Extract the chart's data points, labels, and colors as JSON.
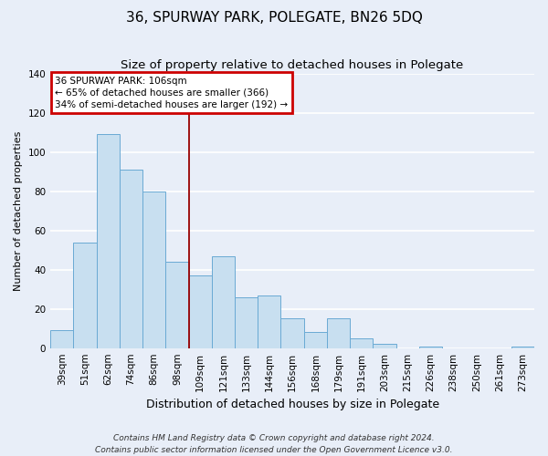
{
  "title": "36, SPURWAY PARK, POLEGATE, BN26 5DQ",
  "subtitle": "Size of property relative to detached houses in Polegate",
  "xlabel": "Distribution of detached houses by size in Polegate",
  "ylabel": "Number of detached properties",
  "categories": [
    "39sqm",
    "51sqm",
    "62sqm",
    "74sqm",
    "86sqm",
    "98sqm",
    "109sqm",
    "121sqm",
    "133sqm",
    "144sqm",
    "156sqm",
    "168sqm",
    "179sqm",
    "191sqm",
    "203sqm",
    "215sqm",
    "226sqm",
    "238sqm",
    "250sqm",
    "261sqm",
    "273sqm"
  ],
  "values": [
    9,
    54,
    109,
    91,
    80,
    44,
    37,
    47,
    26,
    27,
    15,
    8,
    15,
    5,
    2,
    0,
    1,
    0,
    0,
    0,
    1
  ],
  "bar_color": "#c8dff0",
  "bar_edge_color": "#6aaad4",
  "vline_x": 5.5,
  "vline_color": "#990000",
  "annotation_title": "36 SPURWAY PARK: 106sqm",
  "annotation_line1": "← 65% of detached houses are smaller (366)",
  "annotation_line2": "34% of semi-detached houses are larger (192) →",
  "annotation_box_color": "white",
  "annotation_box_edge": "#cc0000",
  "ylim": [
    0,
    140
  ],
  "yticks": [
    0,
    20,
    40,
    60,
    80,
    100,
    120,
    140
  ],
  "footer1": "Contains HM Land Registry data © Crown copyright and database right 2024.",
  "footer2": "Contains public sector information licensed under the Open Government Licence v3.0.",
  "bg_color": "#e8eef8",
  "grid_color": "white",
  "title_fontsize": 11,
  "subtitle_fontsize": 9.5,
  "xlabel_fontsize": 9,
  "ylabel_fontsize": 8,
  "tick_fontsize": 7.5,
  "footer_fontsize": 6.5
}
